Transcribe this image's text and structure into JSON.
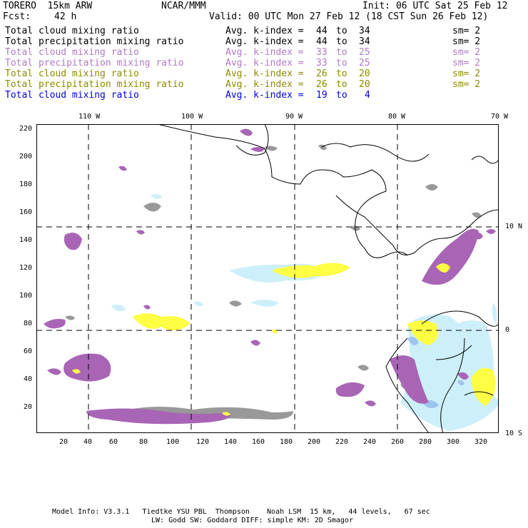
{
  "header": {
    "model": "TORERO  15km ARW",
    "org": "NCAR/MMM",
    "init": "Init: 06 UTC Sat 25 Feb 12",
    "fcst_label": "Fcst:",
    "fcst_value": "42 h",
    "valid": "Valid: 00 UTC Mon 27 Feb 12 (18 CST Sun 26 Feb 12)"
  },
  "fields": [
    {
      "name": "Total cloud mixing ratio",
      "kindex": "Avg. k-index =",
      "from": "44",
      "to": "34",
      "sm": "sm= 2",
      "color": "#000000"
    },
    {
      "name": "Total precipitation mixing ratio",
      "kindex": "Avg. k-index =",
      "from": "44",
      "to": "34",
      "sm": "sm= 2",
      "color": "#000000"
    },
    {
      "name": "Total cloud mixing ratio",
      "kindex": "Avg. k-index =",
      "from": "33",
      "to": "25",
      "sm": "sm= 2",
      "color": "#b07ac8"
    },
    {
      "name": "Total precipitation mixing ratio",
      "kindex": "Avg. k-index =",
      "from": "33",
      "to": "25",
      "sm": "sm= 2",
      "color": "#b07ac8"
    },
    {
      "name": "Total cloud mixing ratio",
      "kindex": "Avg. k-index =",
      "from": "26",
      "to": "20",
      "sm": "sm= 2",
      "color": "#8b8b00"
    },
    {
      "name": "Total precipitation mixing ratio",
      "kindex": "Avg. k-index =",
      "from": "26",
      "to": "20",
      "sm": "sm= 2",
      "color": "#8b8b00"
    },
    {
      "name": "Total cloud mixing ratio",
      "kindex": "Avg. k-index =",
      "from": "19",
      "to": "4",
      "sm": "",
      "color": "#0000dd"
    }
  ],
  "to_word": "to",
  "map": {
    "lon_labels": [
      "110 W",
      "100 W",
      "90 W",
      "80 W",
      "70 W"
    ],
    "lat_labels": [
      "10 N",
      "0",
      "10 S"
    ],
    "x_ticks": [
      "20",
      "40",
      "60",
      "80",
      "100",
      "120",
      "140",
      "160",
      "180",
      "200",
      "220",
      "240",
      "260",
      "280",
      "300",
      "320"
    ],
    "y_ticks": [
      "220",
      "200",
      "180",
      "160",
      "140",
      "120",
      "100",
      "80",
      "60",
      "40",
      "20"
    ],
    "colors": {
      "high_kindex_grey": "#999999",
      "mid_kindex_purple": "#a865b5",
      "low_kindex_yellow": "#ffff33",
      "lowest_kindex_cyan": "#c8eef8",
      "lowest_kindex_blue": "#9ec5ee"
    }
  },
  "footer": {
    "line1": "Model Info: V3.3.1   Tiedtke YSU PBL  Thompson    Noah LSM  15 km,   44 levels,   67 sec",
    "line2": "LW: Godd SW: Goddard DIFF: simple KM: 2D Smagor"
  }
}
